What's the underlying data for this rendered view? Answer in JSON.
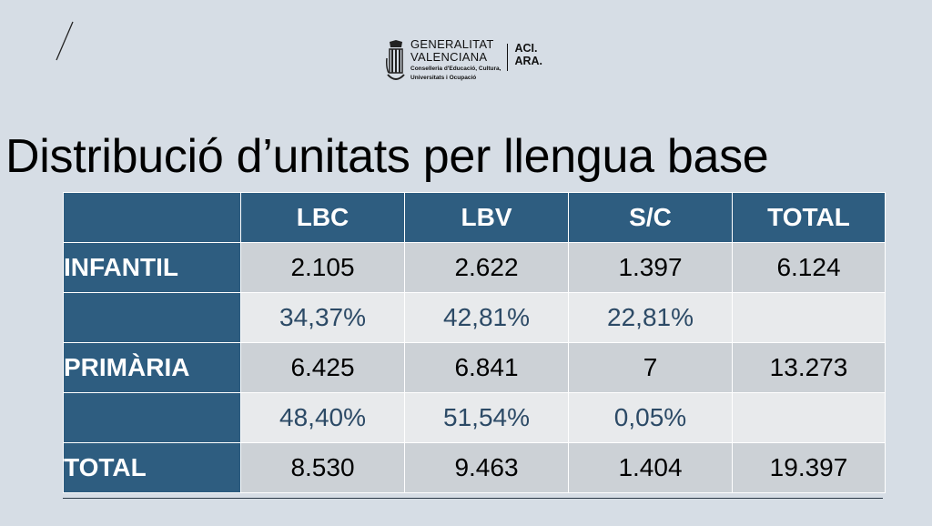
{
  "logo": {
    "org_line1": "GENERALITAT",
    "org_line2": "VALENCIANA",
    "dept_line1": "Conselleria d'Educació, Cultura,",
    "dept_line2": "Universitats i Ocupació",
    "slogan_line1": "ACI.",
    "slogan_line2": "ARA."
  },
  "title": "Distribució d’unitats per llengua base",
  "table": {
    "headers": [
      "",
      "LBC",
      "LBV",
      "S/C",
      "TOTAL"
    ],
    "rows": [
      {
        "label": "INFANTIL",
        "type": "val",
        "cells": [
          "2.105",
          "2.622",
          "1.397",
          "6.124"
        ]
      },
      {
        "label": "",
        "type": "pct",
        "cells": [
          "34,37%",
          "42,81%",
          "22,81%",
          ""
        ]
      },
      {
        "label": "PRIMÀRIA",
        "type": "val",
        "cells": [
          "6.425",
          "6.841",
          "7",
          "13.273"
        ]
      },
      {
        "label": "",
        "type": "pct",
        "cells": [
          "48,40%",
          "51,54%",
          "0,05%",
          ""
        ]
      },
      {
        "label": "TOTAL",
        "type": "val",
        "cells": [
          "8.530",
          "9.463",
          "1.404",
          "19.397"
        ]
      }
    ]
  },
  "colors": {
    "background": "#d6dde5",
    "header": "#2e5d80",
    "value_cell": "#ccd1d6",
    "percent_cell": "#e8eaec",
    "percent_text": "#2c4a66"
  }
}
